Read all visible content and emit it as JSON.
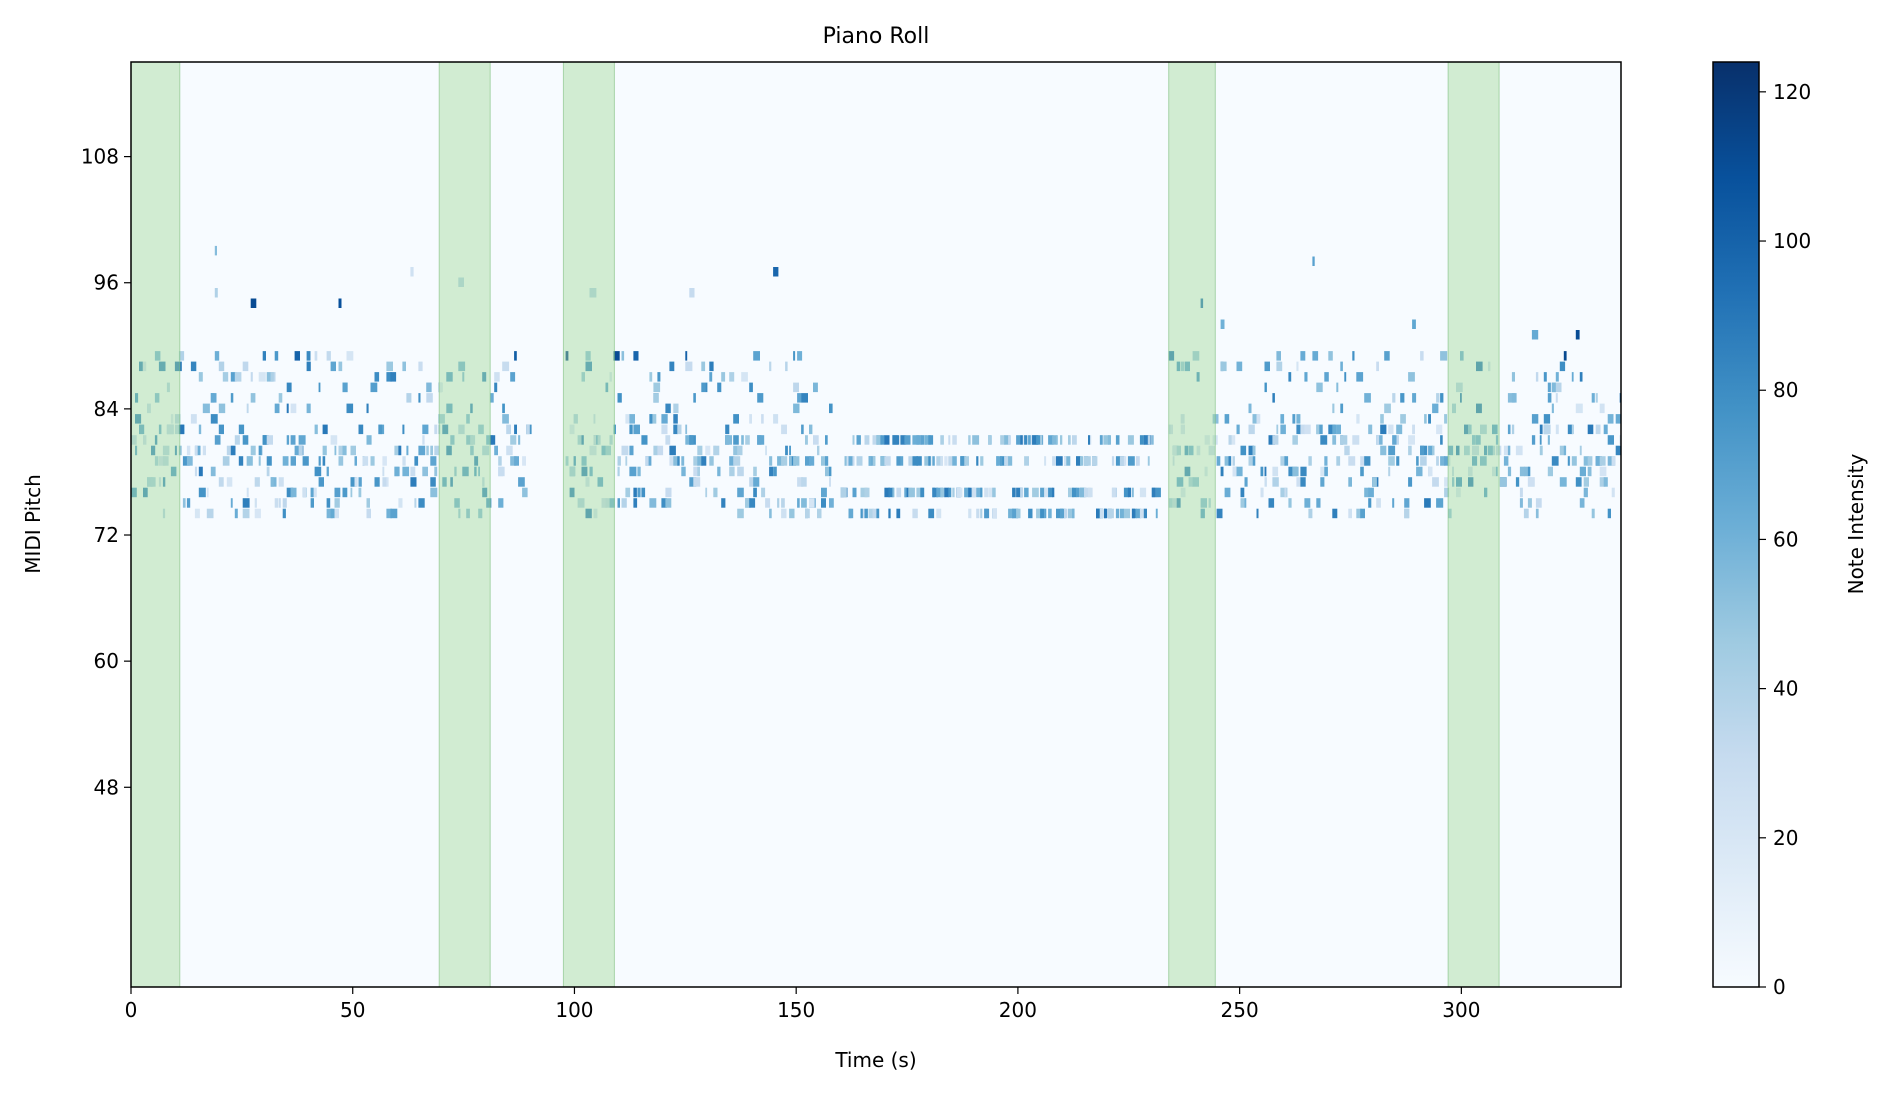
{
  "chart_data": {
    "type": "heatmap",
    "title": "Piano Roll",
    "xlabel": "Time (s)",
    "ylabel": "MIDI Pitch",
    "xlim": [
      0,
      336
    ],
    "ylim": [
      29,
      117
    ],
    "x_ticks": [
      0,
      50,
      100,
      150,
      200,
      250,
      300
    ],
    "y_ticks": [
      48,
      60,
      72,
      84,
      96,
      108
    ],
    "colormap": "Blues",
    "grid": false,
    "colorbar": {
      "label": "Note Intensity",
      "range": [
        0,
        124
      ],
      "ticks": [
        0,
        20,
        40,
        60,
        80,
        100,
        120
      ]
    },
    "highlight_color": "#a1d99b",
    "highlight_spans": [
      {
        "start": 0,
        "end": 11
      },
      {
        "start": 69.5,
        "end": 81
      },
      {
        "start": 97.5,
        "end": 109
      },
      {
        "start": 234,
        "end": 244.5
      },
      {
        "start": 297,
        "end": 308.5
      }
    ],
    "pitch_range": [
      73,
      100
    ],
    "active_sections": [
      {
        "start": 0,
        "end": 90
      },
      {
        "start": 98,
        "end": 158
      },
      {
        "start": 160,
        "end": 232
      },
      {
        "start": 234,
        "end": 336
      }
    ]
  }
}
